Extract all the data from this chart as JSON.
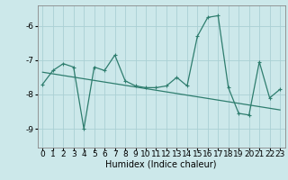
{
  "x": [
    0,
    1,
    2,
    3,
    4,
    5,
    6,
    7,
    8,
    9,
    10,
    11,
    12,
    13,
    14,
    15,
    16,
    17,
    18,
    19,
    20,
    21,
    22,
    23
  ],
  "y": [
    -7.7,
    -7.3,
    -7.1,
    -7.2,
    -9.0,
    -7.2,
    -7.3,
    -6.85,
    -7.6,
    -7.75,
    -7.8,
    -7.8,
    -7.75,
    -7.5,
    -7.75,
    -6.3,
    -5.75,
    -5.7,
    -7.8,
    -8.55,
    -8.6,
    -7.05,
    -8.1,
    -7.85
  ],
  "trend_x": [
    0,
    23
  ],
  "trend_y": [
    -7.35,
    -8.45
  ],
  "line_color": "#2e7d6e",
  "bg_color": "#cce8ea",
  "grid_color": "#aad0d4",
  "xlabel": "Humidex (Indice chaleur)",
  "xlim": [
    -0.5,
    23.5
  ],
  "ylim": [
    -9.55,
    -5.4
  ],
  "yticks": [
    -9,
    -8,
    -7,
    -6
  ],
  "xticks": [
    0,
    1,
    2,
    3,
    4,
    5,
    6,
    7,
    8,
    9,
    10,
    11,
    12,
    13,
    14,
    15,
    16,
    17,
    18,
    19,
    20,
    21,
    22,
    23
  ],
  "xlabel_fontsize": 7,
  "tick_fontsize": 6.5,
  "marker_size": 2.5,
  "linewidth": 0.9,
  "trend_linewidth": 0.9
}
